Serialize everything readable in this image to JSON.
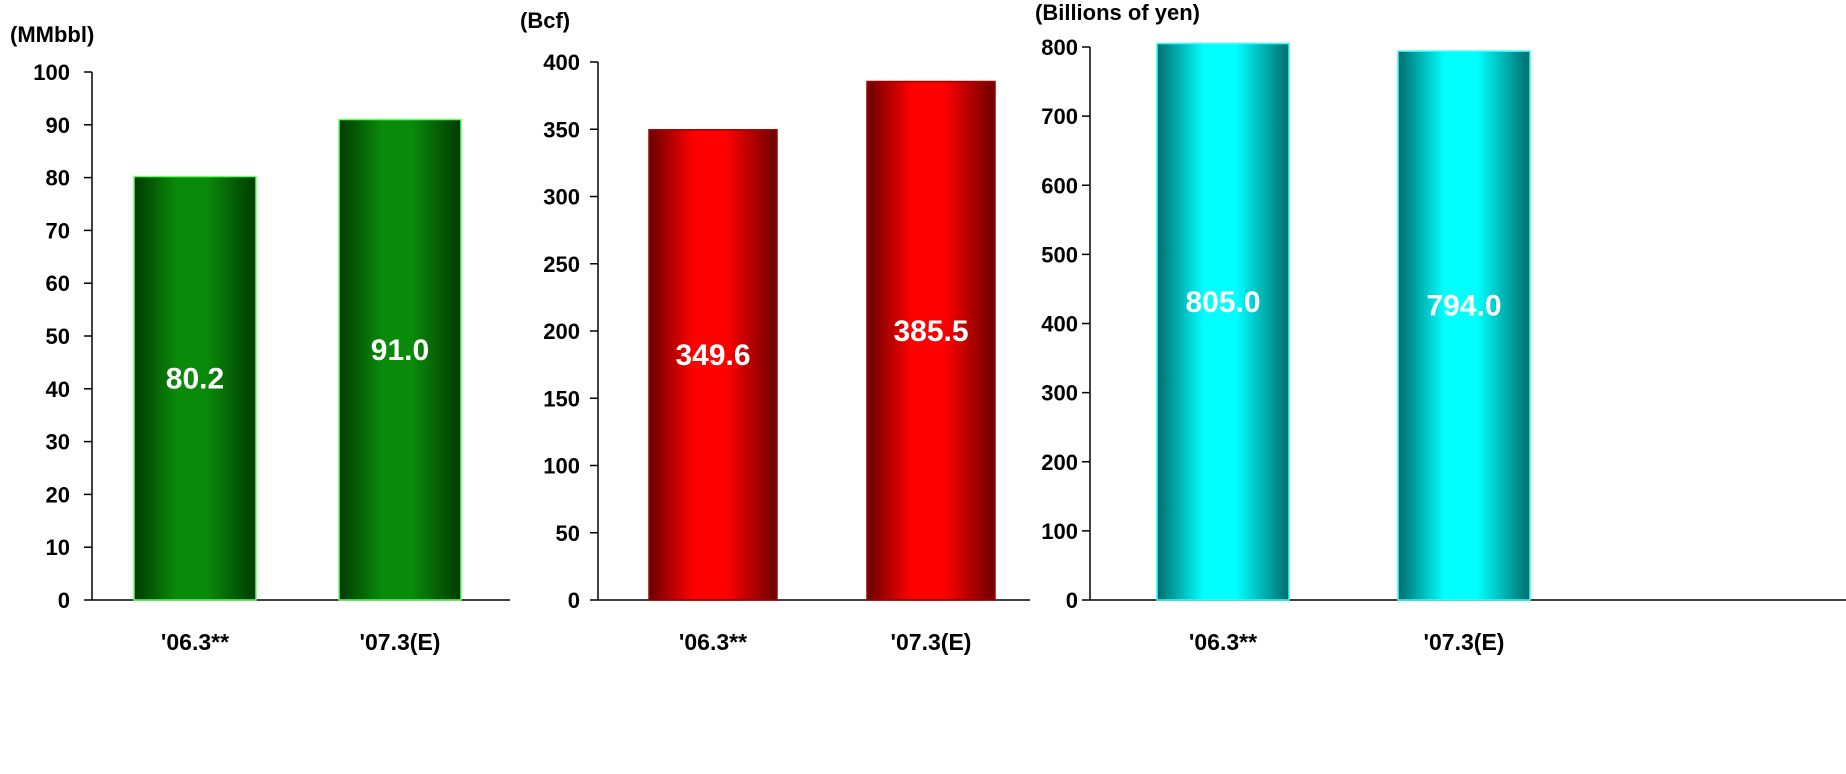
{
  "chart_data": [
    {
      "type": "bar",
      "unit_label": "(MMbbl)",
      "categories": [
        "'06.3**",
        "'07.3(E)"
      ],
      "values": [
        80.2,
        91.0
      ],
      "value_labels": [
        "80.2",
        "91.0"
      ],
      "ylim": [
        0,
        100
      ],
      "yticks": [
        0,
        10,
        20,
        30,
        40,
        50,
        60,
        70,
        80,
        90,
        100
      ],
      "grid": false,
      "colors": {
        "dark": "#003a00",
        "light": "#0a8a0a",
        "edge": "#66ff66",
        "label": "#ffffff"
      }
    },
    {
      "type": "bar",
      "unit_label": "(Bcf)",
      "categories": [
        "'06.3**",
        "'07.3(E)"
      ],
      "values": [
        349.6,
        385.5
      ],
      "value_labels": [
        "349.6",
        "385.5"
      ],
      "ylim": [
        0,
        400
      ],
      "yticks": [
        0,
        50,
        100,
        150,
        200,
        250,
        300,
        350,
        400
      ],
      "grid": false,
      "colors": {
        "dark": "#6a0000",
        "light": "#ff0000",
        "edge": "#a00000",
        "label": "#ffffff"
      }
    },
    {
      "type": "bar",
      "unit_label": "(Billions of yen)",
      "categories": [
        "'06.3**",
        "'07.3(E)"
      ],
      "values": [
        805.0,
        794.0
      ],
      "value_labels": [
        "805.0",
        "794.0"
      ],
      "ylim": [
        0,
        800
      ],
      "yticks": [
        0,
        100,
        200,
        300,
        400,
        500,
        600,
        700,
        800
      ],
      "grid": false,
      "colors": {
        "dark": "#006b6b",
        "light": "#00ffff",
        "edge": "#33ffff",
        "label": "#ffffff"
      }
    }
  ]
}
